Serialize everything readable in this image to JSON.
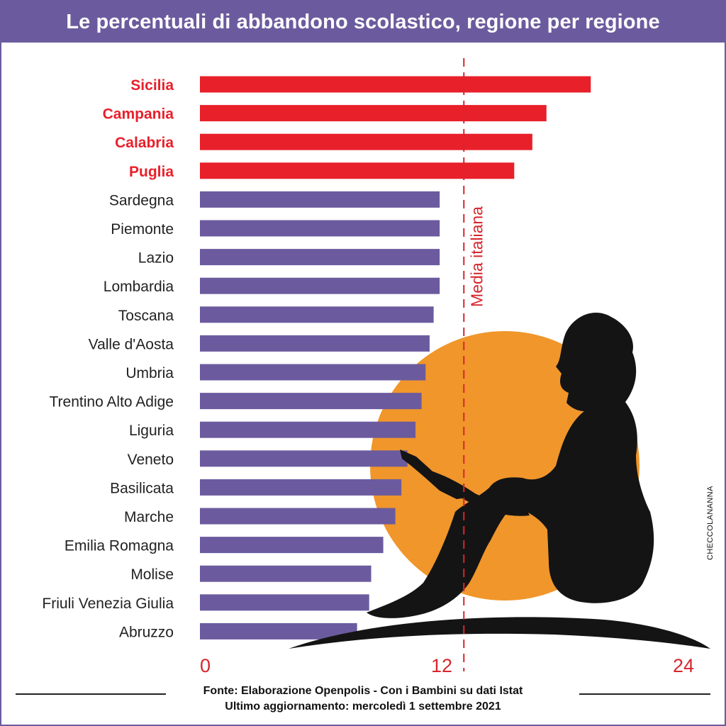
{
  "header": {
    "title": "Le percentuali di abbandono scolastico, regione per regione"
  },
  "colors": {
    "highlight": "#e8202a",
    "bar": "#6b5b9e",
    "sun": "#f0962b",
    "silhouette": "#141414",
    "axis_text": "#d6262e",
    "text": "#222222"
  },
  "icons": {
    "illustration": "child-reading-book-silhouette-icon",
    "background": "sun-icon"
  },
  "credit": "CHECCOLANANNA",
  "footer": {
    "source": "Fonte: Elaborazione Openpolis - Con i Bambini su dati Istat",
    "updated": "Ultimo aggiornamento: mercoledì 1 settembre 2021"
  },
  "chart_data": {
    "type": "bar",
    "orientation": "horizontal",
    "title": "Le percentuali di abbandono scolastico, regione per regione",
    "categories": [
      "Sicilia",
      "Campania",
      "Calabria",
      "Puglia",
      "Sardegna",
      "Piemonte",
      "Lazio",
      "Lombardia",
      "Toscana",
      "Valle d'Aosta",
      "Umbria",
      "Trentino Alto Adige",
      "Liguria",
      "Veneto",
      "Basilicata",
      "Marche",
      "Emilia Romagna",
      "Molise",
      "Friuli Venezia Giulia",
      "Abruzzo"
    ],
    "values": [
      19.4,
      17.2,
      16.5,
      15.6,
      11.9,
      11.9,
      11.9,
      11.9,
      11.6,
      11.4,
      11.2,
      11.0,
      10.7,
      10.3,
      10.0,
      9.7,
      9.1,
      8.5,
      8.4,
      7.8
    ],
    "highlighted": [
      "Sicilia",
      "Campania",
      "Calabria",
      "Puglia"
    ],
    "xlim": [
      0,
      24
    ],
    "xticks": [
      0,
      12,
      24
    ],
    "reference_line": {
      "label": "Media italiana",
      "value": 13.1
    }
  }
}
